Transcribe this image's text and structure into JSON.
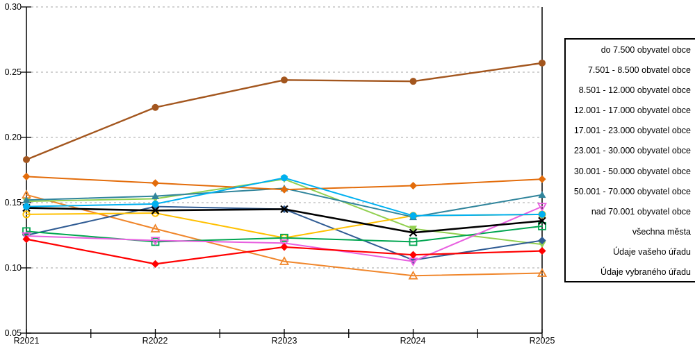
{
  "chart_data": {
    "type": "line",
    "title": "",
    "x_labels": [
      "R2021",
      "R2022",
      "R2023",
      "R2024",
      "R2025"
    ],
    "y_tick_labels": [
      "0.30",
      "0.25",
      "0.20",
      "0.15",
      "0.10",
      "0.05"
    ],
    "y_tick_values": [
      0.3,
      0.25,
      0.2,
      0.15,
      0.1,
      0.05
    ],
    "grid_values": [
      0.3,
      0.25,
      0.2,
      0.15,
      0.1
    ],
    "ylim": [
      0.05,
      0.3
    ],
    "grid": "horizontal dashed gray lines",
    "legend_position": "right outside plot, text only (marker swatches cut off at image edge)",
    "series": [
      {
        "name": "do 7.500 obyvatel obce",
        "color": "#A3561E",
        "marker": "circle",
        "line_width": 2.4,
        "values": [
          0.183,
          0.223,
          0.244,
          0.243,
          0.257
        ]
      },
      {
        "name": "7.501 - 8.500 obvatel obce",
        "color": "#E36C0A",
        "marker": "diamond",
        "line_width": 2,
        "values": [
          0.17,
          0.165,
          0.16,
          0.163,
          0.168
        ]
      },
      {
        "name": "8.501 - 12.000 obyvatel obce",
        "color": "#F0862B",
        "marker": "triangle-open",
        "line_width": 2,
        "values": [
          0.156,
          0.13,
          0.105,
          0.094,
          0.096
        ]
      },
      {
        "name": "12.001 - 17.000 obyvatel obce",
        "color": "#31859C",
        "marker": "triangle",
        "line_width": 2,
        "values": [
          0.152,
          0.155,
          0.161,
          0.139,
          0.156
        ]
      },
      {
        "name": "17.001 - 23.000 obyvatel obce",
        "color": "#00B0F0",
        "marker": "circle",
        "line_width": 2,
        "values": [
          0.147,
          0.149,
          0.169,
          0.14,
          0.141
        ]
      },
      {
        "name": "23.001 - 30.000 obyvatel obce",
        "color": "#FFC000",
        "marker": "circle-open",
        "line_width": 2,
        "values": [
          0.141,
          0.142,
          0.123,
          0.14,
          0.141
        ]
      },
      {
        "name": "30.001 - 50.000 obyvatel obce",
        "color": "#00A550",
        "marker": "square-open",
        "line_width": 2,
        "values": [
          0.128,
          0.12,
          0.123,
          0.12,
          0.132
        ]
      },
      {
        "name": "50.001 - 70.000 obyvatel obce",
        "color": "#92D050",
        "marker": "triangle-down",
        "line_width": 2,
        "values": [
          0.151,
          0.153,
          0.168,
          0.13,
          0.118
        ]
      },
      {
        "name": "nad 70.001 obyvatel obce",
        "color": "#2F5B93",
        "marker": "diamond",
        "line_width": 2,
        "values": [
          0.125,
          0.147,
          0.145,
          0.106,
          0.121
        ]
      },
      {
        "name": "všechna města",
        "color": "#000000",
        "marker": "x",
        "line_width": 2.6,
        "values": [
          0.146,
          0.144,
          0.145,
          0.127,
          0.136
        ]
      },
      {
        "name": "Údaje vašeho úřadu",
        "color": "#FF0000",
        "marker": "diamond",
        "line_width": 2.2,
        "values": [
          0.122,
          0.103,
          0.116,
          0.11,
          0.113
        ]
      },
      {
        "name": "Údaje vybraného úřadu",
        "color": "#E860E0",
        "marker": "triangle-down-open",
        "line_width": 2,
        "values": [
          0.1245,
          0.121,
          0.119,
          0.105,
          0.147
        ]
      }
    ],
    "draw_order": [
      2,
      7,
      8,
      5,
      3,
      6,
      11,
      1,
      0,
      9,
      4,
      10
    ]
  },
  "legend": {
    "entries": [
      "do 7.500 obyvatel obce",
      "7.501 - 8.500 obvatel obce",
      "8.501 - 12.000 obyvatel obce",
      "12.001 - 17.000 obyvatel obce",
      "17.001 - 23.000 obyvatel obce",
      "23.001 - 30.000 obyvatel obce",
      "30.001 - 50.000 obyvatel obce",
      "50.001 - 70.000 obyvatel obce",
      "nad 70.001 obyvatel obce",
      "všechna města",
      "Údaje vašeho úřadu",
      "Údaje vybraného úřadu"
    ]
  }
}
